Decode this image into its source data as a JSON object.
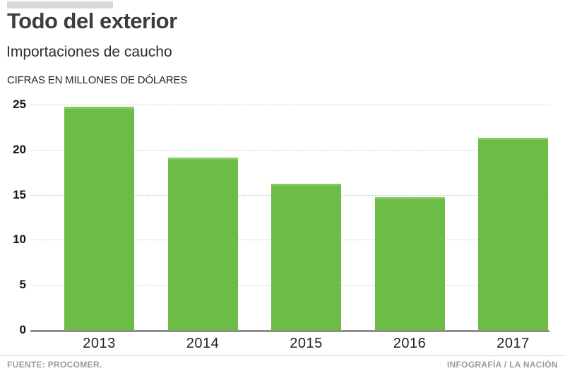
{
  "header": {
    "title": "Todo del exterior",
    "subtitle": "Importaciones de caucho",
    "units_label": "CIFRAS EN MILLONES DE DÓLARES"
  },
  "footer": {
    "source": "FUENTE: PROCOMER.",
    "credit": "INFOGRAFÍA / LA NACIÓN"
  },
  "colors": {
    "bar_green": "#6cbc46",
    "bar_green_top_edge": "#87ca62",
    "accent_bar_gray": "#d8d8d8",
    "gridline_gray": "#c2c2c2",
    "axis_gray": "#8d8d8d",
    "footer_text_gray": "#9b9b9b",
    "title_dark": "#3d3d3d"
  },
  "chart_data": {
    "type": "bar",
    "title": "Todo del exterior",
    "subtitle": "Importaciones de caucho",
    "ylabel": "CIFRAS EN MILLONES DE DÓLARES",
    "categories": [
      "2013",
      "2014",
      "2015",
      "2016",
      "2017"
    ],
    "values": [
      24.8,
      19.1,
      16.2,
      14.7,
      21.3
    ],
    "ylim": [
      0,
      25
    ],
    "yticks": [
      0,
      5,
      10,
      15,
      20,
      25
    ],
    "grid": "horizontal-dotted",
    "legend": "none",
    "bar_color": "#6cbc46"
  }
}
